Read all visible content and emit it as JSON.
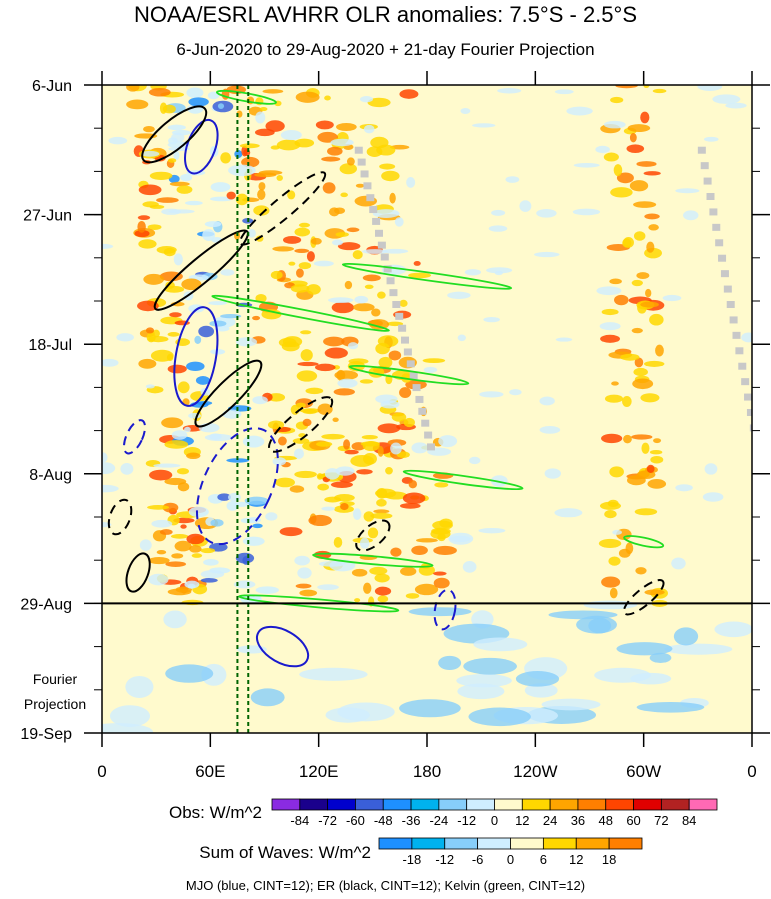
{
  "header": {
    "title": "NOAA/ESRL AVHRR OLR anomalies: 7.5°S - 2.5°S",
    "subtitle": "6-Jun-2020 to 29-Aug-2020 + 21-day Fourier Projection"
  },
  "chart_data": {
    "type": "heatmap",
    "x_axis": {
      "ticks": [
        {
          "lon": 0,
          "label": "0"
        },
        {
          "lon": 60,
          "label": "60E"
        },
        {
          "lon": 120,
          "label": "120E"
        },
        {
          "lon": 180,
          "label": "180"
        },
        {
          "lon": 240,
          "label": "120W"
        },
        {
          "lon": 300,
          "label": "60W"
        },
        {
          "lon": 360,
          "label": "0"
        }
      ],
      "range": [
        0,
        360
      ]
    },
    "y_axis": {
      "ticks": [
        {
          "day": 0,
          "label": "6-Jun"
        },
        {
          "day": 21,
          "label": "27-Jun"
        },
        {
          "day": 42,
          "label": "18-Jul"
        },
        {
          "day": 63,
          "label": "8-Aug"
        },
        {
          "day": 84,
          "label": "29-Aug"
        },
        {
          "day": 105,
          "label": "19-Sep"
        }
      ],
      "range": [
        0,
        105
      ],
      "observation_end_label": "29-Aug",
      "projection_label_line1": "Fourier",
      "projection_label_line2": "Projection"
    },
    "obs_colorbar": {
      "label": "Obs: W/m^2",
      "levels": [
        "-84",
        "-72",
        "-60",
        "-48",
        "-36",
        "-24",
        "-12",
        "0",
        "12",
        "24",
        "36",
        "48",
        "60",
        "72",
        "84"
      ],
      "colors": [
        "#8a2be2",
        "#1a008c",
        "#0000cd",
        "#3a5fd9",
        "#1e90ff",
        "#00b2ee",
        "#87cefa",
        "#cfeeff",
        "#fffacd",
        "#ffd700",
        "#ffa500",
        "#ff7f00",
        "#ff4500",
        "#e00000",
        "#b22222",
        "#ff69b4"
      ]
    },
    "waves_colorbar": {
      "label": "Sum of Waves: W/m^2",
      "levels": [
        "-18",
        "-12",
        "-6",
        "0",
        "6",
        "12",
        "18"
      ],
      "colors": [
        "#1e90ff",
        "#00b2ee",
        "#87cefa",
        "#cfeeff",
        "#fffacd",
        "#ffd700",
        "#ffa500",
        "#ff7f00"
      ]
    },
    "contour_legend": "MJO (blue, CINT=12); ER (black, CINT=12); Kelvin (green, CINT=12)",
    "reference_lines_lon": [
      75,
      81
    ],
    "series": [
      {
        "name": "MJO",
        "color": "#1a1acd"
      },
      {
        "name": "ER",
        "color": "#000000"
      },
      {
        "name": "Kelvin",
        "color": "#22dd22"
      }
    ]
  }
}
